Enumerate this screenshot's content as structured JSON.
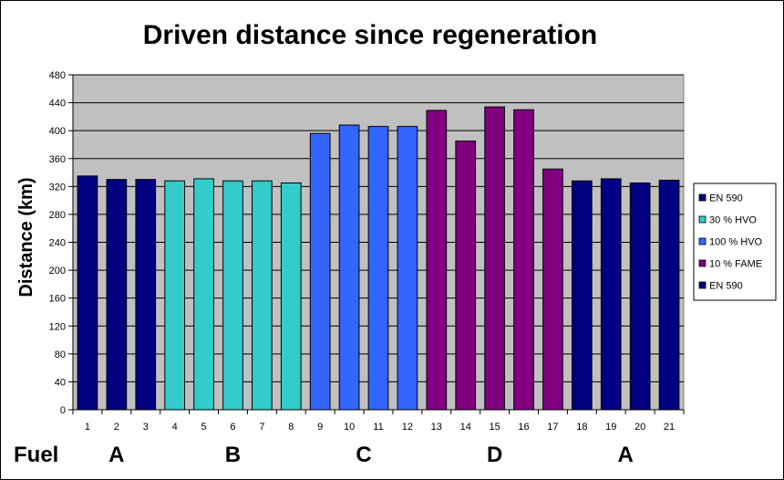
{
  "chart_data": {
    "type": "bar",
    "title": "Driven distance since regeneration",
    "ylabel": "Distance (km)",
    "xlabel": "",
    "ylim": [
      0,
      480
    ],
    "yticks": [
      0,
      40,
      80,
      120,
      160,
      200,
      240,
      280,
      320,
      360,
      400,
      440,
      480
    ],
    "grid": true,
    "legend_position": "right",
    "categories": [
      "1",
      "2",
      "3",
      "4",
      "5",
      "6",
      "7",
      "8",
      "9",
      "10",
      "11",
      "12",
      "13",
      "14",
      "15",
      "16",
      "17",
      "18",
      "19",
      "20",
      "21"
    ],
    "values": [
      335,
      330,
      330,
      328,
      331,
      328,
      328,
      325,
      396,
      408,
      406,
      406,
      429,
      385,
      434,
      430,
      345,
      328,
      331,
      325,
      329
    ],
    "series": [
      {
        "name": "EN 590",
        "color": "#000080",
        "indices": [
          0,
          1,
          2
        ]
      },
      {
        "name": "30 % HVO",
        "color": "#33CCCC",
        "indices": [
          3,
          4,
          5,
          6,
          7
        ]
      },
      {
        "name": "100 % HVO",
        "color": "#3366FF",
        "indices": [
          8,
          9,
          10,
          11
        ]
      },
      {
        "name": "10 % FAME",
        "color": "#800080",
        "indices": [
          12,
          13,
          14,
          15,
          16
        ]
      },
      {
        "name": "EN 590",
        "color": "#000080",
        "indices": [
          17,
          18,
          19,
          20
        ]
      }
    ],
    "fuel_row": {
      "label": "Fuel",
      "groups": [
        {
          "text": "A",
          "center_index": 1
        },
        {
          "text": "B",
          "center_index": 5
        },
        {
          "text": "C",
          "center_index": 9.5
        },
        {
          "text": "D",
          "center_index": 14
        },
        {
          "text": "A",
          "center_index": 18.5
        }
      ]
    },
    "plot_background": "#C0C0C0"
  }
}
